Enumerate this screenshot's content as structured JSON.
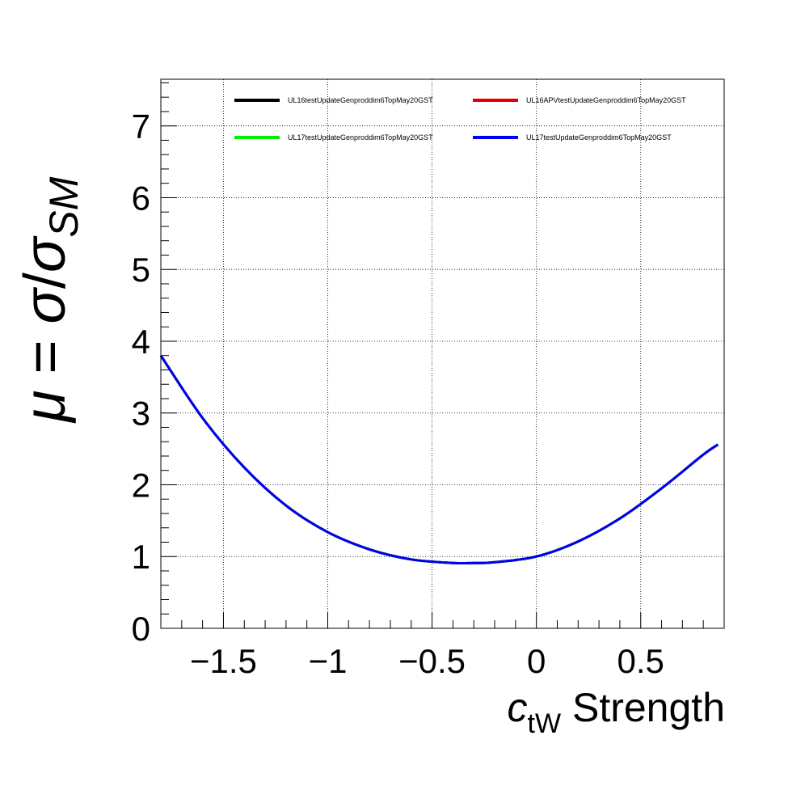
{
  "chart_data": {
    "type": "line",
    "xlabel": {
      "var": "c",
      "sub": "tW",
      "rest": " Strength"
    },
    "ylabel": {
      "mu": "μ",
      "eq": " = ",
      "sigma": "σ",
      "slash": "/",
      "sigma2": "σ",
      "sub": "SM"
    },
    "xlim": [
      -1.8,
      0.9
    ],
    "ylim": [
      0,
      7.65
    ],
    "xticks": [
      -1.5,
      -1,
      -0.5,
      0,
      0.5
    ],
    "xtick_labels": [
      "−1.5",
      "−1",
      "−0.5",
      "0",
      "0.5"
    ],
    "yticks": [
      0,
      1,
      2,
      3,
      4,
      5,
      6,
      7
    ],
    "ytick_labels": [
      "0",
      "1",
      "2",
      "3",
      "4",
      "5",
      "6",
      "7"
    ],
    "grid": true,
    "legend_position": "top",
    "x": [
      -1.8,
      -1.6,
      -1.4,
      -1.2,
      -1.0,
      -0.8,
      -0.6,
      -0.4,
      -0.3,
      -0.2,
      0.0,
      0.2,
      0.4,
      0.6,
      0.8,
      0.87
    ],
    "series": [
      {
        "name": "UL16testUpdateGenproddim6TopMay20GST",
        "color": "#000000",
        "values": [
          3.8,
          2.93,
          2.24,
          1.71,
          1.34,
          1.1,
          0.96,
          0.91,
          0.91,
          0.92,
          1.0,
          1.21,
          1.53,
          1.95,
          2.42,
          2.56
        ]
      },
      {
        "name": "UL16APVtestUpdateGenproddim6TopMay20GST",
        "color": "#e00000",
        "values": [
          3.8,
          2.93,
          2.24,
          1.71,
          1.34,
          1.1,
          0.96,
          0.91,
          0.91,
          0.92,
          1.0,
          1.21,
          1.53,
          1.95,
          2.42,
          2.56
        ]
      },
      {
        "name": "UL17testUpdateGenproddim6TopMay20GST",
        "color": "#00ee00",
        "values": [
          3.8,
          2.93,
          2.24,
          1.71,
          1.34,
          1.1,
          0.96,
          0.91,
          0.91,
          0.92,
          1.0,
          1.21,
          1.53,
          1.95,
          2.42,
          2.56
        ]
      },
      {
        "name": "UL17testUpdateGenproddim6TopMay20GST",
        "color": "#0000ee",
        "values": [
          3.8,
          2.93,
          2.24,
          1.71,
          1.34,
          1.1,
          0.96,
          0.91,
          0.91,
          0.92,
          1.0,
          1.21,
          1.53,
          1.95,
          2.42,
          2.56
        ]
      }
    ]
  }
}
